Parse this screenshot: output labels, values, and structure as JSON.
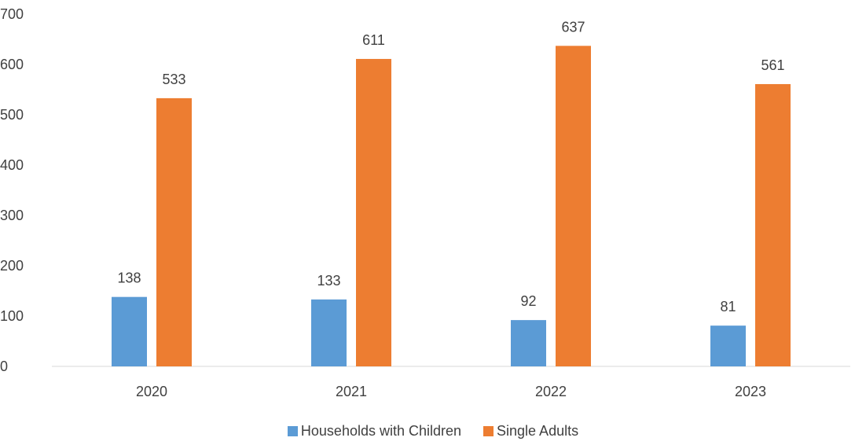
{
  "chart_data": {
    "type": "bar",
    "categories": [
      "2020",
      "2021",
      "2022",
      "2023"
    ],
    "series": [
      {
        "name": "Households with Children",
        "values": [
          138,
          133,
          92,
          81
        ],
        "color": "#5B9BD5"
      },
      {
        "name": "Single Adults",
        "values": [
          533,
          611,
          637,
          561
        ],
        "color": "#ED7D31"
      }
    ],
    "ylim": [
      0,
      700
    ],
    "yticks": [
      0,
      100,
      200,
      300,
      400,
      500,
      600,
      700
    ],
    "grid": false,
    "legend": "bottom",
    "title": "",
    "xlabel": "",
    "ylabel": ""
  }
}
